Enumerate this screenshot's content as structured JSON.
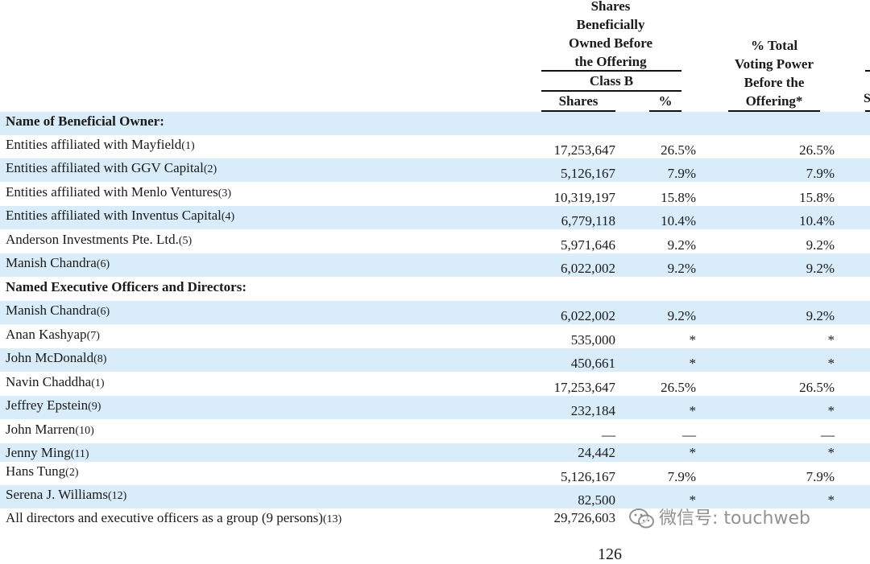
{
  "header": {
    "shares_title_lines": [
      "Shares",
      "Beneficially",
      "Owned Before",
      "the Offering"
    ],
    "class_label": "Class B",
    "col_shares": "Shares",
    "col_pct": "%",
    "voting_title_lines": [
      "% Total",
      "Voting Power",
      "Before the",
      "Offering*"
    ]
  },
  "sections": {
    "beneficial_owner": "Name of Beneficial Owner:",
    "officers": "Named Executive Officers and Directors:"
  },
  "rows": [
    {
      "name": "Entities affiliated with Mayfield",
      "note": "(1)",
      "shares": "17,253,647",
      "pct": "26.5%",
      "vote": "26.5%"
    },
    {
      "name": "Entities affiliated with GGV Capital",
      "note": "(2)",
      "shares": "5,126,167",
      "pct": "7.9%",
      "vote": "7.9%"
    },
    {
      "name": "Entities affiliated with Menlo Ventures",
      "note": "(3)",
      "shares": "10,319,197",
      "pct": "15.8%",
      "vote": "15.8%"
    },
    {
      "name": "Entities affiliated with Inventus Capital",
      "note": "(4)",
      "shares": "6,779,118",
      "pct": "10.4%",
      "vote": "10.4%"
    },
    {
      "name": "Anderson Investments Pte. Ltd.",
      "note": "(5)",
      "shares": "5,971,646",
      "pct": "9.2%",
      "vote": "9.2%"
    },
    {
      "name": "Manish Chandra",
      "note": "(6)",
      "shares": "6,022,002",
      "pct": "9.2%",
      "vote": "9.2%"
    },
    {
      "name": "Manish Chandra",
      "note": "(6)",
      "shares": "6,022,002",
      "pct": "9.2%",
      "vote": "9.2%"
    },
    {
      "name": "Anan Kashyap",
      "note": "(7)",
      "shares": "535,000",
      "pct": "*",
      "vote": "*"
    },
    {
      "name": "John McDonald",
      "note": "(8)",
      "shares": "450,661",
      "pct": "*",
      "vote": "*"
    },
    {
      "name": "Navin Chaddha",
      "note": "(1)",
      "shares": "17,253,647",
      "pct": "26.5%",
      "vote": "26.5%"
    },
    {
      "name": "Jeffrey Epstein",
      "note": "(9)",
      "shares": "232,184",
      "pct": "*",
      "vote": "*"
    },
    {
      "name": "John Marren",
      "note": "(10)",
      "shares": "—",
      "pct": "—",
      "vote": "—"
    },
    {
      "name": "Jenny Ming",
      "note": "(11)",
      "shares": "24,442",
      "pct": "*",
      "vote": "*"
    },
    {
      "name": "Hans Tung",
      "note": "(2)",
      "shares": "5,126,167",
      "pct": "7.9%",
      "vote": "7.9%"
    },
    {
      "name": "Serena J. Williams",
      "note": "(12)",
      "shares": "82,500",
      "pct": "*",
      "vote": "*"
    },
    {
      "name": "All directors and executive officers as a group (9 persons)",
      "note": "(13)",
      "shares": "29,726,603",
      "pct": "",
      "vote": ""
    }
  ],
  "watermark": "微信号: touchweb",
  "page_number": "126",
  "edge_glyphs": [
    "S"
  ]
}
